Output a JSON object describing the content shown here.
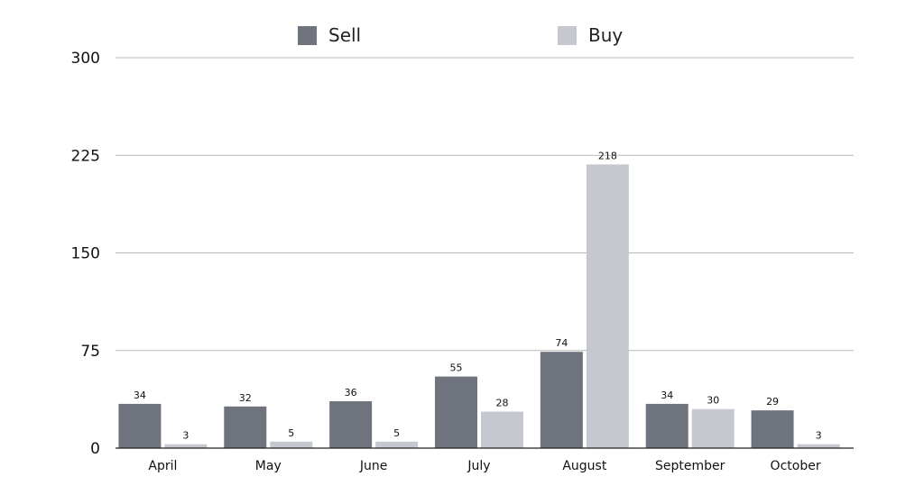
{
  "chart_data": {
    "type": "bar",
    "categories": [
      "April",
      "May",
      "June",
      "July",
      "August",
      "September",
      "October"
    ],
    "series": [
      {
        "name": "Sell",
        "values": [
          34,
          32,
          36,
          55,
          74,
          34,
          29
        ],
        "color": "#6f737e"
      },
      {
        "name": "Buy",
        "values": [
          3,
          5,
          5,
          28,
          218,
          30,
          3
        ],
        "color": "#c5c8cf"
      }
    ],
    "title": "",
    "xlabel": "",
    "ylabel": "",
    "ylim": [
      0,
      300
    ],
    "yticks": [
      0,
      75,
      150,
      225,
      300
    ],
    "grid": true,
    "legend_position": "top"
  }
}
